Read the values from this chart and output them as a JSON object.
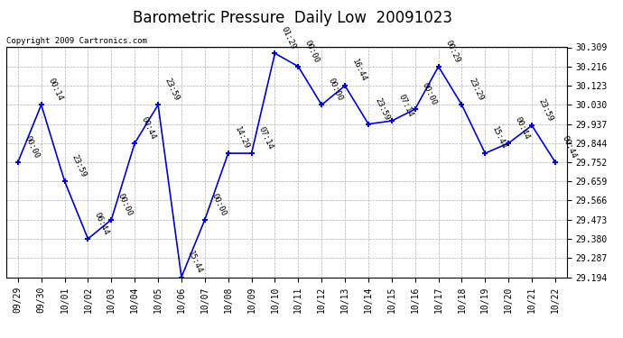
{
  "title": "Barometric Pressure  Daily Low  20091023",
  "copyright": "Copyright 2009 Cartronics.com",
  "x_labels": [
    "09/29",
    "09/30",
    "10/01",
    "10/02",
    "10/03",
    "10/04",
    "10/05",
    "10/06",
    "10/07",
    "10/08",
    "10/09",
    "10/10",
    "10/11",
    "10/12",
    "10/13",
    "10/14",
    "10/15",
    "10/16",
    "10/17",
    "10/18",
    "10/19",
    "10/20",
    "10/21",
    "10/22"
  ],
  "y_values": [
    29.752,
    30.03,
    29.659,
    29.38,
    29.473,
    29.844,
    30.03,
    29.194,
    29.473,
    29.795,
    29.795,
    30.28,
    30.216,
    30.03,
    30.123,
    29.937,
    29.952,
    30.009,
    30.216,
    30.03,
    29.795,
    29.844,
    29.93,
    29.752
  ],
  "point_labels": [
    "00:00",
    "00:14",
    "23:59",
    "06:44",
    "00:00",
    "00:44",
    "23:59",
    "15:44",
    "00:00",
    "14:29",
    "07:14",
    "01:29",
    "00:00",
    "00:00",
    "16:44",
    "23:59",
    "07:14",
    "00:00",
    "00:29",
    "23:29",
    "15:44",
    "00:44",
    "23:59",
    "00:44"
  ],
  "ylim_min": 29.194,
  "ylim_max": 30.309,
  "yticks": [
    29.194,
    29.287,
    29.38,
    29.473,
    29.566,
    29.659,
    29.752,
    29.844,
    29.937,
    30.03,
    30.123,
    30.216,
    30.309
  ],
  "line_color": "#0000cc",
  "marker_color": "#0000cc",
  "label_color": "#000000",
  "bg_color": "#ffffff",
  "grid_color": "#b0b0b0",
  "title_fontsize": 12,
  "tick_fontsize": 7,
  "label_fontsize": 6.5,
  "copyright_fontsize": 6.5
}
